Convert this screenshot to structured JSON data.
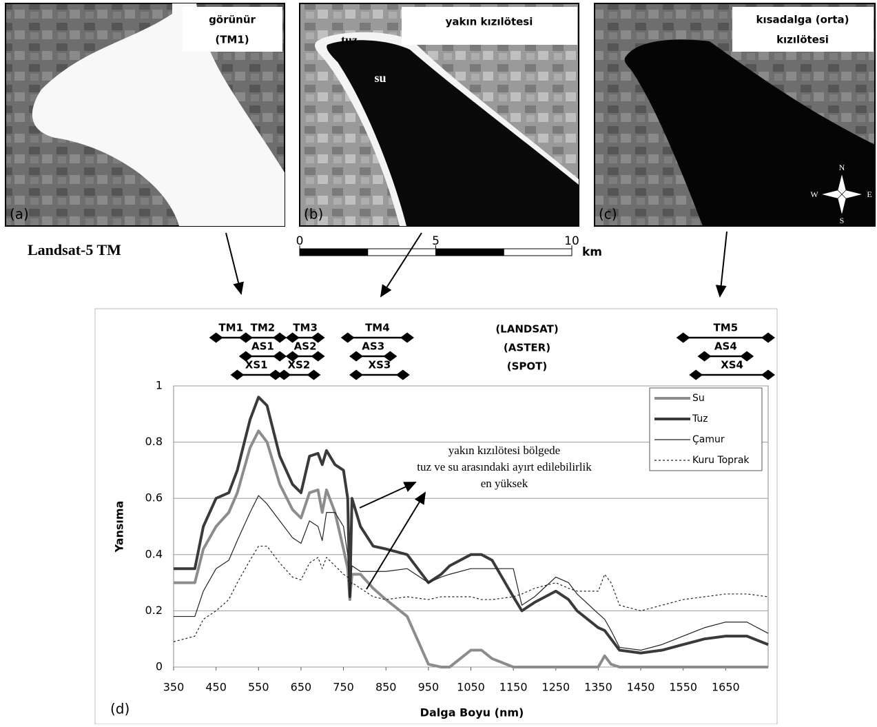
{
  "panels": [
    {
      "title": [
        "görünür",
        "(TM1)"
      ],
      "letter": "(a)"
    },
    {
      "title": [
        "yakın kızılötesi"
      ],
      "letter": "(b)",
      "labels": [
        "tuz",
        "su"
      ]
    },
    {
      "title": [
        "kısadalga (orta)",
        "kızılötesi"
      ],
      "letter": "(c)",
      "compass": [
        "N",
        "E",
        "S",
        "W"
      ]
    }
  ],
  "sensor": "Landsat-5 TM",
  "scale_bar": {
    "ticks": [
      0,
      5,
      10
    ],
    "unit": "km"
  },
  "chart_data": {
    "type": "line",
    "panel_letter": "(d)",
    "x_label": "Dalga Boyu (nm)",
    "y_label": "Yansıma",
    "xlim": [
      350,
      1750
    ],
    "ylim": [
      0,
      1
    ],
    "xticks": [
      350,
      450,
      550,
      650,
      750,
      850,
      950,
      1050,
      1150,
      1250,
      1350,
      1450,
      1550,
      1650
    ],
    "yticks": [
      0,
      0.2,
      0.4,
      0.6,
      0.8,
      1
    ],
    "grid": true,
    "legend": "upper right",
    "x": [
      350,
      400,
      420,
      450,
      480,
      500,
      530,
      550,
      570,
      600,
      630,
      650,
      670,
      690,
      700,
      710,
      730,
      750,
      760,
      765,
      770,
      790,
      820,
      850,
      900,
      950,
      980,
      1000,
      1050,
      1075,
      1100,
      1150,
      1170,
      1200,
      1250,
      1280,
      1300,
      1350,
      1365,
      1380,
      1400,
      1450,
      1500,
      1550,
      1600,
      1650,
      1700,
      1750
    ],
    "series": [
      {
        "name": "Su",
        "color": "#8c8c8c",
        "width": 4,
        "dash": "none",
        "values": [
          0.3,
          0.3,
          0.42,
          0.5,
          0.55,
          0.62,
          0.78,
          0.84,
          0.8,
          0.65,
          0.56,
          0.53,
          0.62,
          0.63,
          0.55,
          0.63,
          0.55,
          0.42,
          0.35,
          0.24,
          0.33,
          0.33,
          0.28,
          0.24,
          0.18,
          0.01,
          0,
          0,
          0.06,
          0.06,
          0.03,
          0,
          0,
          0,
          0,
          0,
          0,
          0,
          0.04,
          0.01,
          0,
          0,
          0,
          0,
          0,
          0,
          0,
          0
        ]
      },
      {
        "name": "Tuz",
        "color": "#3a3a3a",
        "width": 4,
        "dash": "none",
        "values": [
          0.35,
          0.35,
          0.5,
          0.6,
          0.62,
          0.7,
          0.88,
          0.96,
          0.93,
          0.75,
          0.65,
          0.62,
          0.75,
          0.76,
          0.72,
          0.77,
          0.72,
          0.7,
          0.6,
          0.25,
          0.6,
          0.5,
          0.43,
          0.42,
          0.4,
          0.3,
          0.33,
          0.36,
          0.4,
          0.4,
          0.38,
          0.25,
          0.2,
          0.23,
          0.27,
          0.24,
          0.2,
          0.14,
          0.13,
          0.1,
          0.06,
          0.05,
          0.06,
          0.08,
          0.1,
          0.11,
          0.11,
          0.08
        ]
      },
      {
        "name": "Çamur",
        "color": "#222222",
        "width": 1.2,
        "dash": "none",
        "values": [
          0.18,
          0.18,
          0.27,
          0.35,
          0.38,
          0.45,
          0.55,
          0.61,
          0.58,
          0.52,
          0.46,
          0.44,
          0.52,
          0.5,
          0.45,
          0.55,
          0.55,
          0.5,
          0.4,
          0.25,
          0.36,
          0.34,
          0.34,
          0.34,
          0.35,
          0.3,
          0.32,
          0.33,
          0.35,
          0.35,
          0.35,
          0.35,
          0.22,
          0.25,
          0.32,
          0.3,
          0.26,
          0.19,
          0.17,
          0.13,
          0.07,
          0.06,
          0.08,
          0.11,
          0.14,
          0.16,
          0.16,
          0.12
        ]
      },
      {
        "name": "Kuru Toprak",
        "color": "#222222",
        "width": 1.2,
        "dash": "3 3",
        "values": [
          0.09,
          0.11,
          0.17,
          0.2,
          0.24,
          0.3,
          0.38,
          0.43,
          0.43,
          0.37,
          0.32,
          0.31,
          0.37,
          0.39,
          0.35,
          0.39,
          0.36,
          0.33,
          0.32,
          0.28,
          0.3,
          0.28,
          0.25,
          0.24,
          0.25,
          0.24,
          0.25,
          0.25,
          0.25,
          0.24,
          0.24,
          0.25,
          0.26,
          0.28,
          0.3,
          0.28,
          0.27,
          0.27,
          0.33,
          0.3,
          0.22,
          0.2,
          0.22,
          0.24,
          0.25,
          0.26,
          0.26,
          0.25
        ]
      }
    ],
    "sensors": [
      {
        "name": "(LANDSAT)",
        "bands": [
          {
            "label": "TM1",
            "range": [
              450,
              520
            ]
          },
          {
            "label": "TM2",
            "range": [
              520,
              600
            ]
          },
          {
            "label": "TM3",
            "range": [
              630,
              690
            ]
          },
          {
            "label": "TM4",
            "range": [
              760,
              900
            ]
          },
          {
            "label": "TM5",
            "range": [
              1550,
              1750
            ]
          }
        ]
      },
      {
        "name": "(ASTER)",
        "bands": [
          {
            "label": "AS1",
            "range": [
              520,
              600
            ]
          },
          {
            "label": "AS2",
            "range": [
              630,
              690
            ]
          },
          {
            "label": "AS3",
            "range": [
              780,
              860
            ]
          },
          {
            "label": "AS4",
            "range": [
              1600,
              1700
            ]
          }
        ]
      },
      {
        "name": "(SPOT)",
        "bands": [
          {
            "label": "XS1",
            "range": [
              500,
              590
            ]
          },
          {
            "label": "XS2",
            "range": [
              610,
              680
            ]
          },
          {
            "label": "XS3",
            "range": [
              780,
              890
            ]
          },
          {
            "label": "XS4",
            "range": [
              1580,
              1750
            ]
          }
        ]
      }
    ],
    "annotation": [
      "yakın kızılötesi bölgede",
      "tuz ve su arasındaki ayırt edilebilirlik",
      "en yüksek"
    ]
  }
}
